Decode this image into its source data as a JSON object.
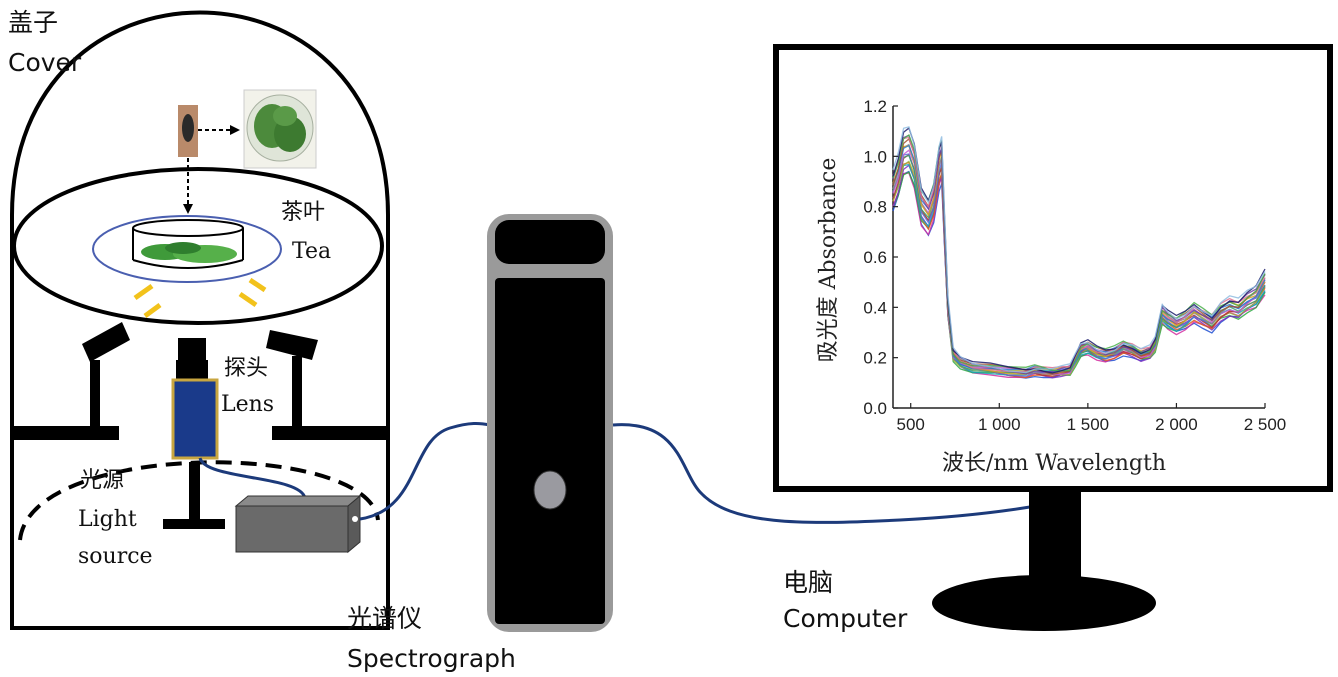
{
  "labels": {
    "cover_zh": "盖子",
    "cover_en": "Cover",
    "tea_zh": "茶叶",
    "tea_en": "Tea",
    "lens_zh": "探头",
    "lens_en": "Lens",
    "light_zh": "光源",
    "light_en_1": "Light",
    "light_en_2": "source",
    "spectrograph_zh": "光谱仪",
    "spectrograph_en": "Spectrograph",
    "computer_zh": "电脑",
    "computer_en": "Computer"
  },
  "colors": {
    "outline": "#000000",
    "lens_body": "#1a3a8a",
    "lens_border": "#c8a640",
    "light_rays": "#f2c21b",
    "fiber": "#1c3a7a",
    "spectrograph_frame": "#9a9a9a",
    "light_source_box": "#6a6a6a",
    "dish_ring": "#4a5fb0"
  },
  "chart_data": {
    "type": "line",
    "xlabel": "波长/nm Wavelength",
    "ylabel": "吸光度 Absorbance",
    "xlim": [
      400,
      2500
    ],
    "ylim": [
      0,
      1.2
    ],
    "xticks": [
      500,
      1000,
      1500,
      2000,
      2500
    ],
    "xtick_labels": [
      "500",
      "1 000",
      "1 500",
      "2 000",
      "2 500"
    ],
    "yticks": [
      0.0,
      0.2,
      0.4,
      0.6,
      0.8,
      1.0,
      1.2
    ],
    "ytick_labels": [
      "0.0",
      "0.2",
      "0.4",
      "0.6",
      "0.8",
      "1.0",
      "1.2"
    ],
    "grid": false,
    "x": [
      400,
      430,
      460,
      490,
      520,
      560,
      600,
      630,
      660,
      675,
      690,
      710,
      740,
      780,
      850,
      950,
      1050,
      1150,
      1200,
      1250,
      1300,
      1350,
      1400,
      1430,
      1460,
      1500,
      1550,
      1600,
      1650,
      1700,
      1750,
      1800,
      1850,
      1880,
      1920,
      1950,
      2000,
      2050,
      2100,
      2150,
      2200,
      2250,
      2300,
      2350,
      2400,
      2450,
      2500
    ],
    "mean": [
      0.86,
      0.92,
      1.01,
      1.02,
      0.96,
      0.8,
      0.76,
      0.82,
      0.96,
      0.99,
      0.72,
      0.4,
      0.21,
      0.18,
      0.16,
      0.155,
      0.145,
      0.14,
      0.15,
      0.145,
      0.14,
      0.145,
      0.15,
      0.19,
      0.23,
      0.24,
      0.22,
      0.21,
      0.22,
      0.24,
      0.23,
      0.21,
      0.22,
      0.25,
      0.37,
      0.35,
      0.33,
      0.35,
      0.38,
      0.36,
      0.34,
      0.38,
      0.4,
      0.39,
      0.42,
      0.44,
      0.5
    ],
    "series_colors": [
      "#1f4fd1",
      "#d22c9f",
      "#2ea843",
      "#7a2bc0",
      "#e05a1a",
      "#18a3b8",
      "#9fb33a",
      "#b0303a",
      "#5d6ad8",
      "#3c9e6e",
      "#c25ed6",
      "#888888",
      "#d8a21f",
      "#2b7cd0",
      "#a0522d",
      "#6b3fa0",
      "#e0708f",
      "#4ab04a",
      "#1a1a6a",
      "#8fbce0"
    ]
  }
}
